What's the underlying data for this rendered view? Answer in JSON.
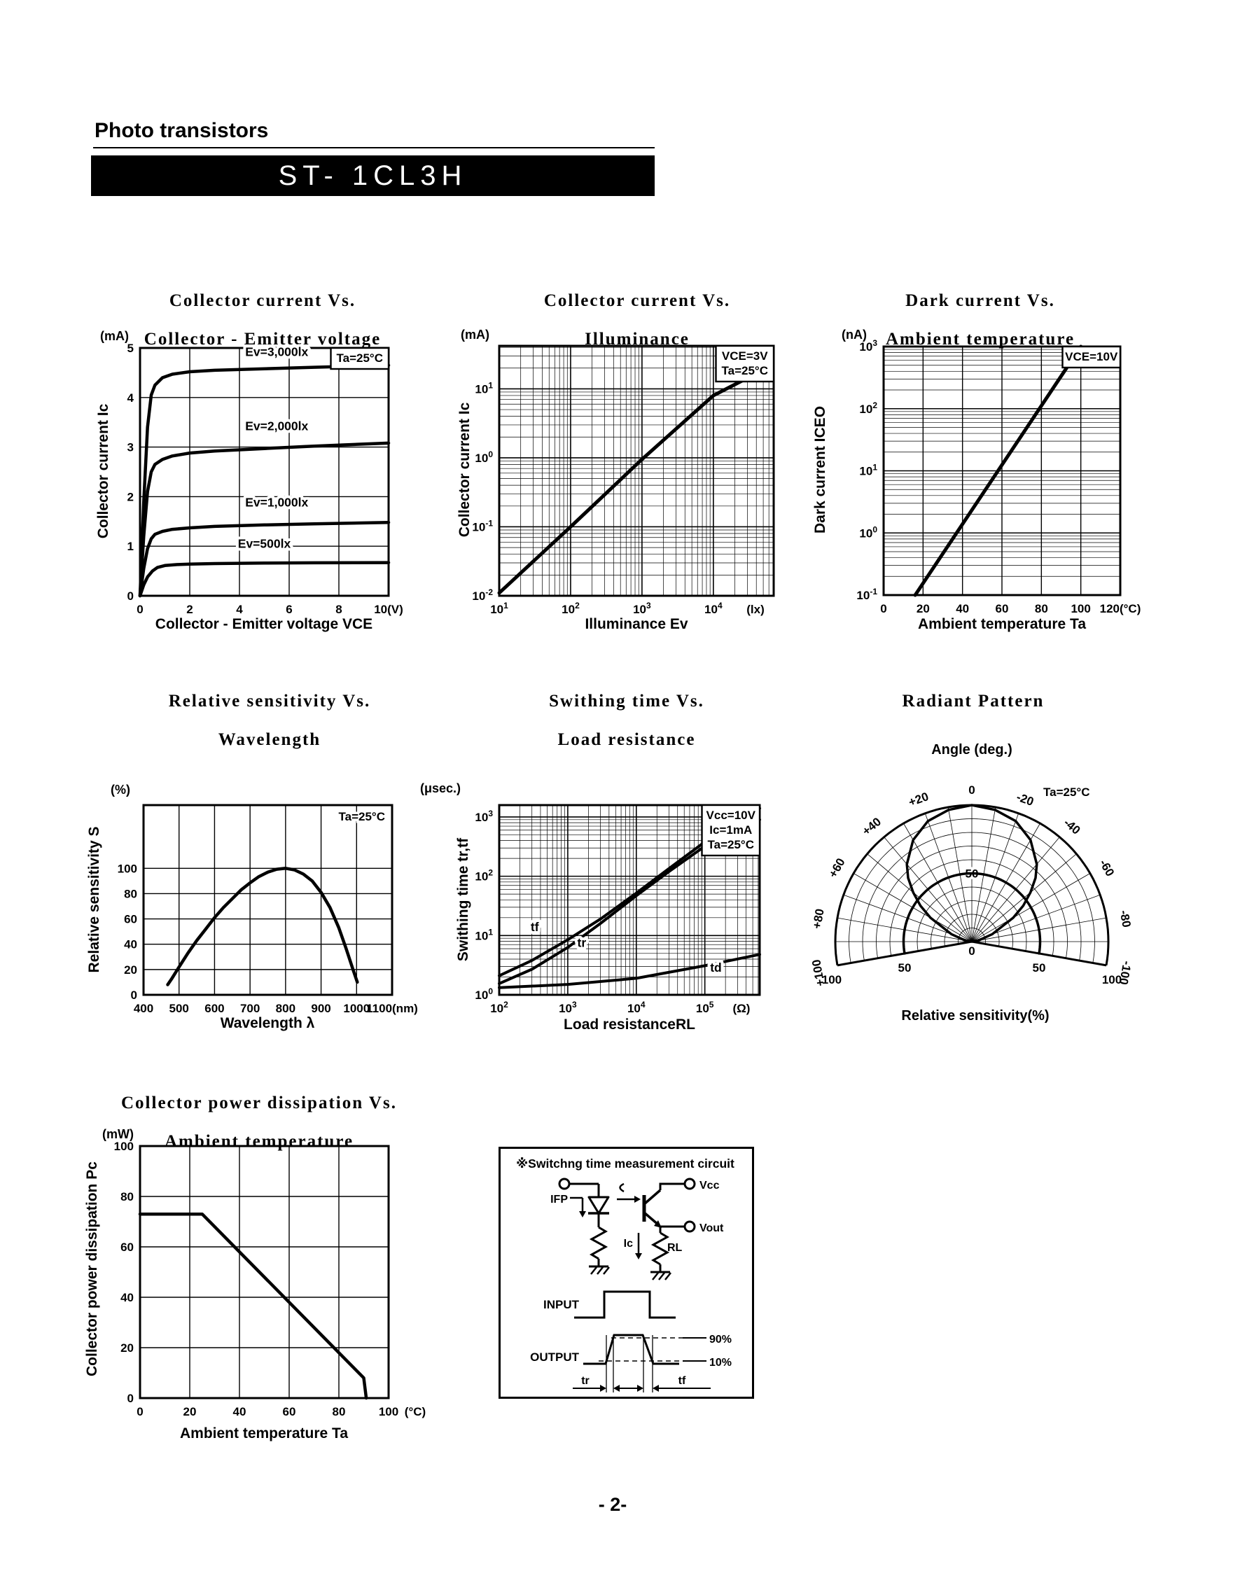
{
  "page": {
    "header": "Photo transistors",
    "part_number": "ST- 1CL3H",
    "page_number": "- 2-"
  },
  "chart_data": [
    {
      "type": "line",
      "kind": "cart",
      "title1": "Collector current Vs.",
      "title2": "Collector - Emitter voltage",
      "yunit": "(mA)",
      "ylabel": "Collector current   Ic",
      "xlabel": "Collector - Emitter voltage   VCE",
      "xlim": [
        0,
        10
      ],
      "ylim": [
        0,
        5
      ],
      "xticks": [
        [
          0,
          "0"
        ],
        [
          2,
          "2"
        ],
        [
          4,
          "4"
        ],
        [
          6,
          "6"
        ],
        [
          8,
          "8"
        ],
        [
          10,
          "10(V)"
        ]
      ],
      "yticks": [
        [
          0,
          "0"
        ],
        [
          1,
          "1"
        ],
        [
          2,
          "2"
        ],
        [
          3,
          "3"
        ],
        [
          4,
          "4"
        ],
        [
          5,
          "5"
        ]
      ],
      "xgrid": [
        2,
        4,
        6,
        8
      ],
      "ygrid": [
        1,
        2,
        3,
        4
      ],
      "series": [
        {
          "name": "Ev=3,000lx",
          "w": 4.5,
          "pts": [
            [
              0,
              0
            ],
            [
              0.15,
              1.9
            ],
            [
              0.3,
              3.4
            ],
            [
              0.45,
              4.05
            ],
            [
              0.6,
              4.25
            ],
            [
              0.9,
              4.4
            ],
            [
              1.3,
              4.47
            ],
            [
              2,
              4.52
            ],
            [
              3,
              4.55
            ],
            [
              5,
              4.58
            ],
            [
              7,
              4.61
            ],
            [
              10,
              4.65
            ]
          ]
        },
        {
          "name": "Ev=2,000lx",
          "w": 4.5,
          "pts": [
            [
              0,
              0
            ],
            [
              0.15,
              1.2
            ],
            [
              0.3,
              2.1
            ],
            [
              0.45,
              2.5
            ],
            [
              0.6,
              2.65
            ],
            [
              0.9,
              2.75
            ],
            [
              1.3,
              2.82
            ],
            [
              2,
              2.88
            ],
            [
              3,
              2.92
            ],
            [
              5,
              2.97
            ],
            [
              7,
              3.02
            ],
            [
              10,
              3.08
            ]
          ]
        },
        {
          "name": "Ev=1,000lx",
          "w": 4.5,
          "pts": [
            [
              0,
              0
            ],
            [
              0.15,
              0.55
            ],
            [
              0.3,
              0.95
            ],
            [
              0.45,
              1.15
            ],
            [
              0.6,
              1.24
            ],
            [
              0.9,
              1.3
            ],
            [
              1.3,
              1.34
            ],
            [
              2,
              1.37
            ],
            [
              3,
              1.4
            ],
            [
              5,
              1.43
            ],
            [
              7,
              1.45
            ],
            [
              10,
              1.48
            ]
          ]
        },
        {
          "name": "Ev=500lx",
          "w": 4.5,
          "pts": [
            [
              0,
              0
            ],
            [
              0.15,
              0.22
            ],
            [
              0.3,
              0.38
            ],
            [
              0.5,
              0.5
            ],
            [
              0.7,
              0.57
            ],
            [
              1,
              0.61
            ],
            [
              1.5,
              0.63
            ],
            [
              2,
              0.64
            ],
            [
              3,
              0.65
            ],
            [
              5,
              0.66
            ],
            [
              7,
              0.665
            ],
            [
              10,
              0.67
            ]
          ]
        }
      ],
      "labels": [
        {
          "t": "Ev=3,000lx",
          "x": 5.5,
          "y": 4.84
        },
        {
          "t": "Ev=2,000lx",
          "x": 5.5,
          "y": 3.34
        },
        {
          "t": "Ev=1,000lx",
          "x": 5.5,
          "y": 1.8
        },
        {
          "t": "Ev=500lx",
          "x": 5.0,
          "y": 0.97
        }
      ],
      "ann": {
        "boxed": true,
        "lines": [
          "Ta=25°C"
        ]
      }
    },
    {
      "type": "line",
      "kind": "cart",
      "xlog": true,
      "ylog": true,
      "title1": "Collector current Vs.",
      "title2": "Illuminance",
      "yunit": "(mA)",
      "ylabel": "Collector current   Ic",
      "xlabel": "Illuminance   Ev",
      "xlim": [
        10,
        70000
      ],
      "ylim": [
        0.01,
        42
      ],
      "xticks": [
        [
          10,
          "10^1"
        ],
        [
          100,
          "10^2"
        ],
        [
          1000,
          "10^3"
        ],
        [
          10000,
          "10^4"
        ]
      ],
      "yticks": [
        [
          0.01,
          "10^-2"
        ],
        [
          0.1,
          "10^-1"
        ],
        [
          1,
          "10^0"
        ],
        [
          10,
          "10^1"
        ]
      ],
      "xunit": "(lx)",
      "xunit_pos": "in",
      "series": [
        {
          "name": "Ic vs Ev",
          "w": 5,
          "pts": [
            [
              10,
              0.011
            ],
            [
              100,
              0.1
            ],
            [
              1000,
              0.95
            ],
            [
              10000,
              8
            ],
            [
              51000,
              19
            ]
          ]
        }
      ],
      "ann": {
        "boxed": true,
        "lines": [
          "VCE=3V",
          "Ta=25°C"
        ]
      }
    },
    {
      "type": "line",
      "kind": "cart",
      "ylog": true,
      "title1": "Dark current Vs.",
      "title2": "Ambient temperature",
      "yunit": "(nA)",
      "ylabel": "Dark current   ICEO",
      "xlabel": "Ambient temperature   Ta",
      "xlim": [
        0,
        120
      ],
      "ylim": [
        0.1,
        1000
      ],
      "xticks": [
        [
          0,
          "0"
        ],
        [
          20,
          "20"
        ],
        [
          40,
          "40"
        ],
        [
          60,
          "60"
        ],
        [
          80,
          "80"
        ],
        [
          100,
          "100"
        ],
        [
          120,
          "120(°C)"
        ]
      ],
      "yticks": [
        [
          0.1,
          "10^-1"
        ],
        [
          1,
          "10^0"
        ],
        [
          10,
          "10^1"
        ],
        [
          100,
          "10^2"
        ],
        [
          1000,
          "10^3"
        ]
      ],
      "xgrid": [
        20,
        40,
        60,
        80,
        100
      ],
      "series": [
        {
          "name": "ICEO vs Ta (VCE=10V)",
          "w": 5,
          "pts": [
            [
              16,
              0.1
            ],
            [
              100,
              1000
            ]
          ]
        }
      ],
      "ann": {
        "boxed": true,
        "lines": [
          "VCE=10V"
        ]
      }
    },
    {
      "type": "line",
      "kind": "cart",
      "title1": "Relative sensitivity Vs.",
      "title2": "Wavelength",
      "yunit": "(%)",
      "ylabel": "Relative sensitivity   S",
      "xlabel": "Wavelength   λ",
      "xlim": [
        400,
        1100
      ],
      "ylim": [
        0,
        150
      ],
      "xticks": [
        [
          400,
          "400"
        ],
        [
          500,
          "500"
        ],
        [
          600,
          "600"
        ],
        [
          700,
          "700"
        ],
        [
          800,
          "800"
        ],
        [
          900,
          "900"
        ],
        [
          1000,
          "1000"
        ],
        [
          1100,
          "1100(nm)"
        ]
      ],
      "yticks": [
        [
          0,
          "0"
        ],
        [
          20,
          "20"
        ],
        [
          40,
          "40"
        ],
        [
          60,
          "60"
        ],
        [
          80,
          "80"
        ],
        [
          100,
          "100"
        ]
      ],
      "xgrid": [
        500,
        600,
        700,
        800,
        900,
        1000
      ],
      "ygrid": [
        20,
        40,
        60,
        80,
        100
      ],
      "series": [
        {
          "name": "Relative sensitivity",
          "w": 4.5,
          "pts": [
            [
              468,
              8
            ],
            [
              480,
              13
            ],
            [
              500,
              22
            ],
            [
              525,
              33
            ],
            [
              550,
              43
            ],
            [
              575,
              52
            ],
            [
              600,
              61
            ],
            [
              625,
              69
            ],
            [
              650,
              76
            ],
            [
              675,
              83
            ],
            [
              700,
              88.5
            ],
            [
              725,
              93.5
            ],
            [
              750,
              97
            ],
            [
              775,
              99.3
            ],
            [
              800,
              100
            ],
            [
              825,
              98.8
            ],
            [
              850,
              95.5
            ],
            [
              875,
              90
            ],
            [
              900,
              81
            ],
            [
              925,
              69
            ],
            [
              950,
              53
            ],
            [
              970,
              37
            ],
            [
              990,
              20
            ],
            [
              1002,
              10
            ]
          ]
        }
      ],
      "ann": {
        "boxed": false,
        "lines": [
          "Ta=25°C"
        ]
      }
    },
    {
      "type": "line",
      "kind": "cart",
      "xlog": true,
      "ylog": true,
      "title1": "Swithing time Vs.",
      "title2": "Load resistance",
      "yunit": "(μsec.)",
      "ylabel": "Swithing time   tr,tf",
      "xlabel": "Load resistanceRL",
      "xlim": [
        100,
        631000
      ],
      "ylim": [
        1,
        1585
      ],
      "xticks": [
        [
          100,
          "10^2"
        ],
        [
          1000,
          "10^3"
        ],
        [
          10000,
          "10^4"
        ],
        [
          100000,
          "10^5"
        ]
      ],
      "yticks": [
        [
          1,
          "10^0"
        ],
        [
          10,
          "10^1"
        ],
        [
          100,
          "10^2"
        ],
        [
          1000,
          "10^3"
        ]
      ],
      "xunit": "(Ω)",
      "xunit_pos": "in",
      "series": [
        {
          "name": "tf",
          "w": 4,
          "pts": [
            [
              100,
              2.1
            ],
            [
              300,
              3.8
            ],
            [
              1000,
              8.5
            ],
            [
              3000,
              19
            ],
            [
              10000,
              52
            ],
            [
              30000,
              135
            ],
            [
              100000,
              380
            ],
            [
              631000,
              1400
            ]
          ]
        },
        {
          "name": "tr",
          "w": 4,
          "pts": [
            [
              100,
              1.55
            ],
            [
              300,
              2.7
            ],
            [
              1000,
              6.3
            ],
            [
              3000,
              16
            ],
            [
              10000,
              47
            ],
            [
              30000,
              120
            ],
            [
              100000,
              320
            ],
            [
              631000,
              900
            ]
          ]
        },
        {
          "name": "td",
          "w": 4,
          "pts": [
            [
              100,
              1.32
            ],
            [
              1000,
              1.5
            ],
            [
              10000,
              1.9
            ],
            [
              100000,
              3.1
            ],
            [
              631000,
              4.8
            ]
          ]
        }
      ],
      "labels": [
        {
          "t": "tf",
          "x": 330,
          "y": 11.8
        },
        {
          "t": "tr",
          "x": 1600,
          "y": 6.4
        },
        {
          "t": "td",
          "x": 145000,
          "y": 2.45
        }
      ],
      "ann": {
        "boxed": true,
        "lines": [
          "Vcc=10V",
          "Ic=1mA",
          "Ta=25°C"
        ]
      }
    },
    {
      "type": "polar",
      "kind": "polar",
      "title1": "Radiant Pattern",
      "sub": "Angle (deg.)",
      "ta": "Ta=25°C",
      "caption": "Relative sensitivity(%)",
      "rmax": 100,
      "rstep": 10,
      "amax": 100,
      "astep": 10,
      "angle_labels": [
        [
          0,
          "0"
        ],
        [
          20,
          "+20"
        ],
        [
          40,
          "+40"
        ],
        [
          60,
          "+60"
        ],
        [
          80,
          "+80"
        ],
        [
          100,
          "+100"
        ],
        [
          -20,
          "-20"
        ],
        [
          -40,
          "-40"
        ],
        [
          -60,
          "-60"
        ],
        [
          -80,
          "-80"
        ],
        [
          -100,
          "-100"
        ]
      ],
      "r_axis_labels": [
        [
          50,
          "50"
        ],
        [
          0,
          "0"
        ]
      ],
      "r_side_labels": [
        [
          50,
          "50"
        ],
        [
          100,
          "100"
        ]
      ],
      "ref_circle": 50,
      "lobe": [
        [
          -90,
          0
        ],
        [
          -80,
          5
        ],
        [
          -70,
          16
        ],
        [
          -60,
          35
        ],
        [
          -55,
          46
        ],
        [
          -50,
          56
        ],
        [
          -45,
          66
        ],
        [
          -40,
          74
        ],
        [
          -30,
          86
        ],
        [
          -20,
          94
        ],
        [
          -10,
          98
        ],
        [
          0,
          100
        ],
        [
          10,
          98
        ],
        [
          20,
          94
        ],
        [
          30,
          86
        ],
        [
          40,
          74
        ],
        [
          45,
          66
        ],
        [
          50,
          56
        ],
        [
          55,
          46
        ],
        [
          60,
          35
        ],
        [
          70,
          16
        ],
        [
          80,
          5
        ],
        [
          90,
          0
        ]
      ]
    },
    {
      "type": "line",
      "kind": "cart",
      "title1": "Collector power dissipation Vs.",
      "title2": "Ambient temperature",
      "yunit": "(mW)",
      "ylabel": "Collector power dissipation   Pc",
      "xlabel": "Ambient temperature   Ta",
      "xlim": [
        0,
        100
      ],
      "ylim": [
        0,
        100
      ],
      "xticks": [
        [
          0,
          "0"
        ],
        [
          20,
          "20"
        ],
        [
          40,
          "40"
        ],
        [
          60,
          "60"
        ],
        [
          80,
          "80"
        ],
        [
          100,
          "100"
        ]
      ],
      "yticks": [
        [
          0,
          "0"
        ],
        [
          20,
          "20"
        ],
        [
          40,
          "40"
        ],
        [
          60,
          "60"
        ],
        [
          80,
          "80"
        ],
        [
          100,
          "100"
        ]
      ],
      "xunit": "(°C)",
      "xunit_pos": "out",
      "xgrid": [
        20,
        40,
        60,
        80
      ],
      "ygrid": [
        20,
        40,
        60,
        80
      ],
      "series": [
        {
          "name": "Pc vs Ta",
          "w": 4.5,
          "pts": [
            [
              0,
              73
            ],
            [
              25,
              73
            ],
            [
              90,
              8
            ],
            [
              91,
              0
            ]
          ]
        }
      ]
    }
  ],
  "circuit": {
    "title": "※Switchng time measurement circuit",
    "ifp": "IFP",
    "ic": "Ic",
    "rl": "RL",
    "vcc": "Vcc",
    "vout": "Vout",
    "input": "INPUT",
    "output": "OUTPUT",
    "p90": "90%",
    "p10": "10%",
    "tr": "tr",
    "tf": "tf"
  }
}
